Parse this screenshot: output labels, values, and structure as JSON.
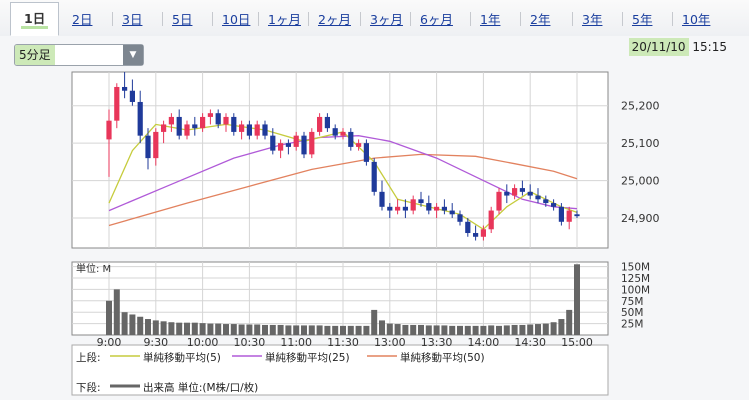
{
  "tabs": [
    {
      "label": "1日",
      "active": true
    },
    {
      "label": "2日"
    },
    {
      "label": "3日"
    },
    {
      "label": "5日"
    },
    {
      "label": "10日"
    },
    {
      "label": "1ヶ月"
    },
    {
      "label": "2ヶ月"
    },
    {
      "label": "3ヶ月"
    },
    {
      "label": "6ヶ月"
    },
    {
      "label": "1年"
    },
    {
      "label": "2年"
    },
    {
      "label": "3年"
    },
    {
      "label": "5年"
    },
    {
      "label": "10年"
    }
  ],
  "interval_select": {
    "value": "5分足"
  },
  "datetime": {
    "date": "20/11/10",
    "time": "15:15"
  },
  "legend": {
    "upper_label": "上段:",
    "lower_label": "下段:",
    "ma5": "単純移動平均(5)",
    "ma25": "単純移動平均(25)",
    "ma50": "単純移動平均(50)",
    "volume": "出来高 単位:(M株/口/枚)"
  },
  "colors": {
    "up": "#e8365a",
    "down": "#1f3a9a",
    "ma5": "#c6cc3d",
    "ma25": "#b05ad8",
    "ma50": "#e2825f",
    "volume": "#666666"
  },
  "chart_data": [
    {
      "type": "candlestick",
      "price_range": [
        24820,
        25290
      ],
      "y_ticks": [
        "25,200",
        "25,100",
        "25,000",
        "24,900"
      ],
      "x_ticks": [
        "9:00",
        "9:30",
        "10:00",
        "10:30",
        "11:00",
        "11:30",
        "13:00",
        "13:30",
        "14:00",
        "14:30",
        "15:00"
      ],
      "ohlc": [
        [
          25110,
          25190,
          25010,
          25160
        ],
        [
          25160,
          25260,
          25140,
          25250
        ],
        [
          25250,
          25290,
          25220,
          25240
        ],
        [
          25240,
          25270,
          25200,
          25210
        ],
        [
          25210,
          25240,
          25100,
          25120
        ],
        [
          25120,
          25140,
          25030,
          25060
        ],
        [
          25060,
          25140,
          25040,
          25130
        ],
        [
          25130,
          25160,
          25100,
          25150
        ],
        [
          25150,
          25180,
          25130,
          25170
        ],
        [
          25170,
          25190,
          25110,
          25120
        ],
        [
          25120,
          25160,
          25110,
          25150
        ],
        [
          25150,
          25170,
          25120,
          25140
        ],
        [
          25140,
          25180,
          25130,
          25170
        ],
        [
          25170,
          25190,
          25150,
          25180
        ],
        [
          25180,
          25190,
          25140,
          25150
        ],
        [
          25150,
          25180,
          25130,
          25170
        ],
        [
          25170,
          25180,
          25120,
          25130
        ],
        [
          25130,
          25160,
          25110,
          25150
        ],
        [
          25150,
          25160,
          25110,
          25120
        ],
        [
          25120,
          25160,
          25110,
          25150
        ],
        [
          25150,
          25160,
          25110,
          25120
        ],
        [
          25120,
          25140,
          25070,
          25080
        ],
        [
          25080,
          25110,
          25060,
          25100
        ],
        [
          25100,
          25110,
          25070,
          25090
        ],
        [
          25090,
          25130,
          25080,
          25120
        ],
        [
          25120,
          25130,
          25060,
          25070
        ],
        [
          25070,
          25140,
          25060,
          25130
        ],
        [
          25130,
          25180,
          25120,
          25170
        ],
        [
          25170,
          25180,
          25130,
          25140
        ],
        [
          25140,
          25150,
          25110,
          25120
        ],
        [
          25120,
          25140,
          25110,
          25130
        ],
        [
          25130,
          25140,
          25080,
          25090
        ],
        [
          25090,
          25110,
          25080,
          25100
        ],
        [
          25100,
          25110,
          25040,
          25050
        ],
        [
          25050,
          25060,
          24960,
          24970
        ],
        [
          24970,
          25000,
          24920,
          24930
        ],
        [
          24930,
          24940,
          24900,
          24920
        ],
        [
          24920,
          24950,
          24910,
          24930
        ],
        [
          24930,
          24950,
          24900,
          24920
        ],
        [
          24920,
          24960,
          24910,
          24950
        ],
        [
          24950,
          24970,
          24930,
          24940
        ],
        [
          24940,
          24960,
          24910,
          24920
        ],
        [
          24920,
          24940,
          24900,
          24930
        ],
        [
          24930,
          24950,
          24910,
          24920
        ],
        [
          24920,
          24940,
          24900,
          24910
        ],
        [
          24910,
          24920,
          24880,
          24890
        ],
        [
          24890,
          24900,
          24850,
          24860
        ],
        [
          24860,
          24880,
          24840,
          24850
        ],
        [
          24850,
          24880,
          24840,
          24870
        ],
        [
          24870,
          24930,
          24860,
          24920
        ],
        [
          24920,
          24980,
          24910,
          24970
        ],
        [
          24970,
          24990,
          24940,
          24960
        ],
        [
          24960,
          24990,
          24950,
          24980
        ],
        [
          24980,
          25000,
          24960,
          24970
        ],
        [
          24970,
          24990,
          24950,
          24960
        ],
        [
          24960,
          24980,
          24940,
          24950
        ],
        [
          24950,
          24960,
          24930,
          24940
        ],
        [
          24940,
          24950,
          24920,
          24930
        ],
        [
          24930,
          24940,
          24880,
          24890
        ],
        [
          24890,
          24930,
          24870,
          24920
        ],
        [
          24910,
          24920,
          24900,
          24905
        ]
      ],
      "ma5": [
        [
          0,
          24940
        ],
        [
          3,
          25080
        ],
        [
          6,
          25150
        ],
        [
          10,
          25135
        ],
        [
          15,
          25150
        ],
        [
          20,
          25135
        ],
        [
          25,
          25105
        ],
        [
          30,
          25130
        ],
        [
          34,
          25050
        ],
        [
          37,
          24950
        ],
        [
          42,
          24925
        ],
        [
          45,
          24910
        ],
        [
          48,
          24870
        ],
        [
          51,
          24930
        ],
        [
          54,
          24970
        ],
        [
          58,
          24930
        ],
        [
          60,
          24915
        ]
      ],
      "ma25": [
        [
          0,
          24920
        ],
        [
          8,
          24990
        ],
        [
          16,
          25060
        ],
        [
          22,
          25095
        ],
        [
          27,
          25115
        ],
        [
          32,
          25120
        ],
        [
          36,
          25105
        ],
        [
          42,
          25060
        ],
        [
          48,
          25000
        ],
        [
          53,
          24950
        ],
        [
          57,
          24930
        ],
        [
          60,
          24925
        ]
      ],
      "ma50": [
        [
          0,
          24880
        ],
        [
          10,
          24940
        ],
        [
          18,
          24985
        ],
        [
          26,
          25030
        ],
        [
          34,
          25060
        ],
        [
          40,
          25070
        ],
        [
          47,
          25065
        ],
        [
          52,
          25045
        ],
        [
          57,
          25025
        ],
        [
          60,
          25005
        ]
      ]
    },
    {
      "type": "bar",
      "title": "単位: M",
      "y_ticks": [
        "150M",
        "125M",
        "100M",
        "75M",
        "50M",
        "25M"
      ],
      "ylim": [
        0,
        160
      ],
      "values": [
        75,
        100,
        50,
        45,
        40,
        35,
        32,
        30,
        28,
        27,
        27,
        27,
        26,
        25,
        25,
        24,
        24,
        23,
        23,
        23,
        22,
        22,
        22,
        21,
        21,
        21,
        21,
        21,
        20,
        20,
        20,
        20,
        20,
        20,
        55,
        32,
        25,
        24,
        22,
        22,
        22,
        21,
        21,
        21,
        20,
        20,
        20,
        20,
        20,
        21,
        20,
        21,
        22,
        22,
        23,
        24,
        25,
        28,
        35,
        55,
        155
      ]
    }
  ]
}
